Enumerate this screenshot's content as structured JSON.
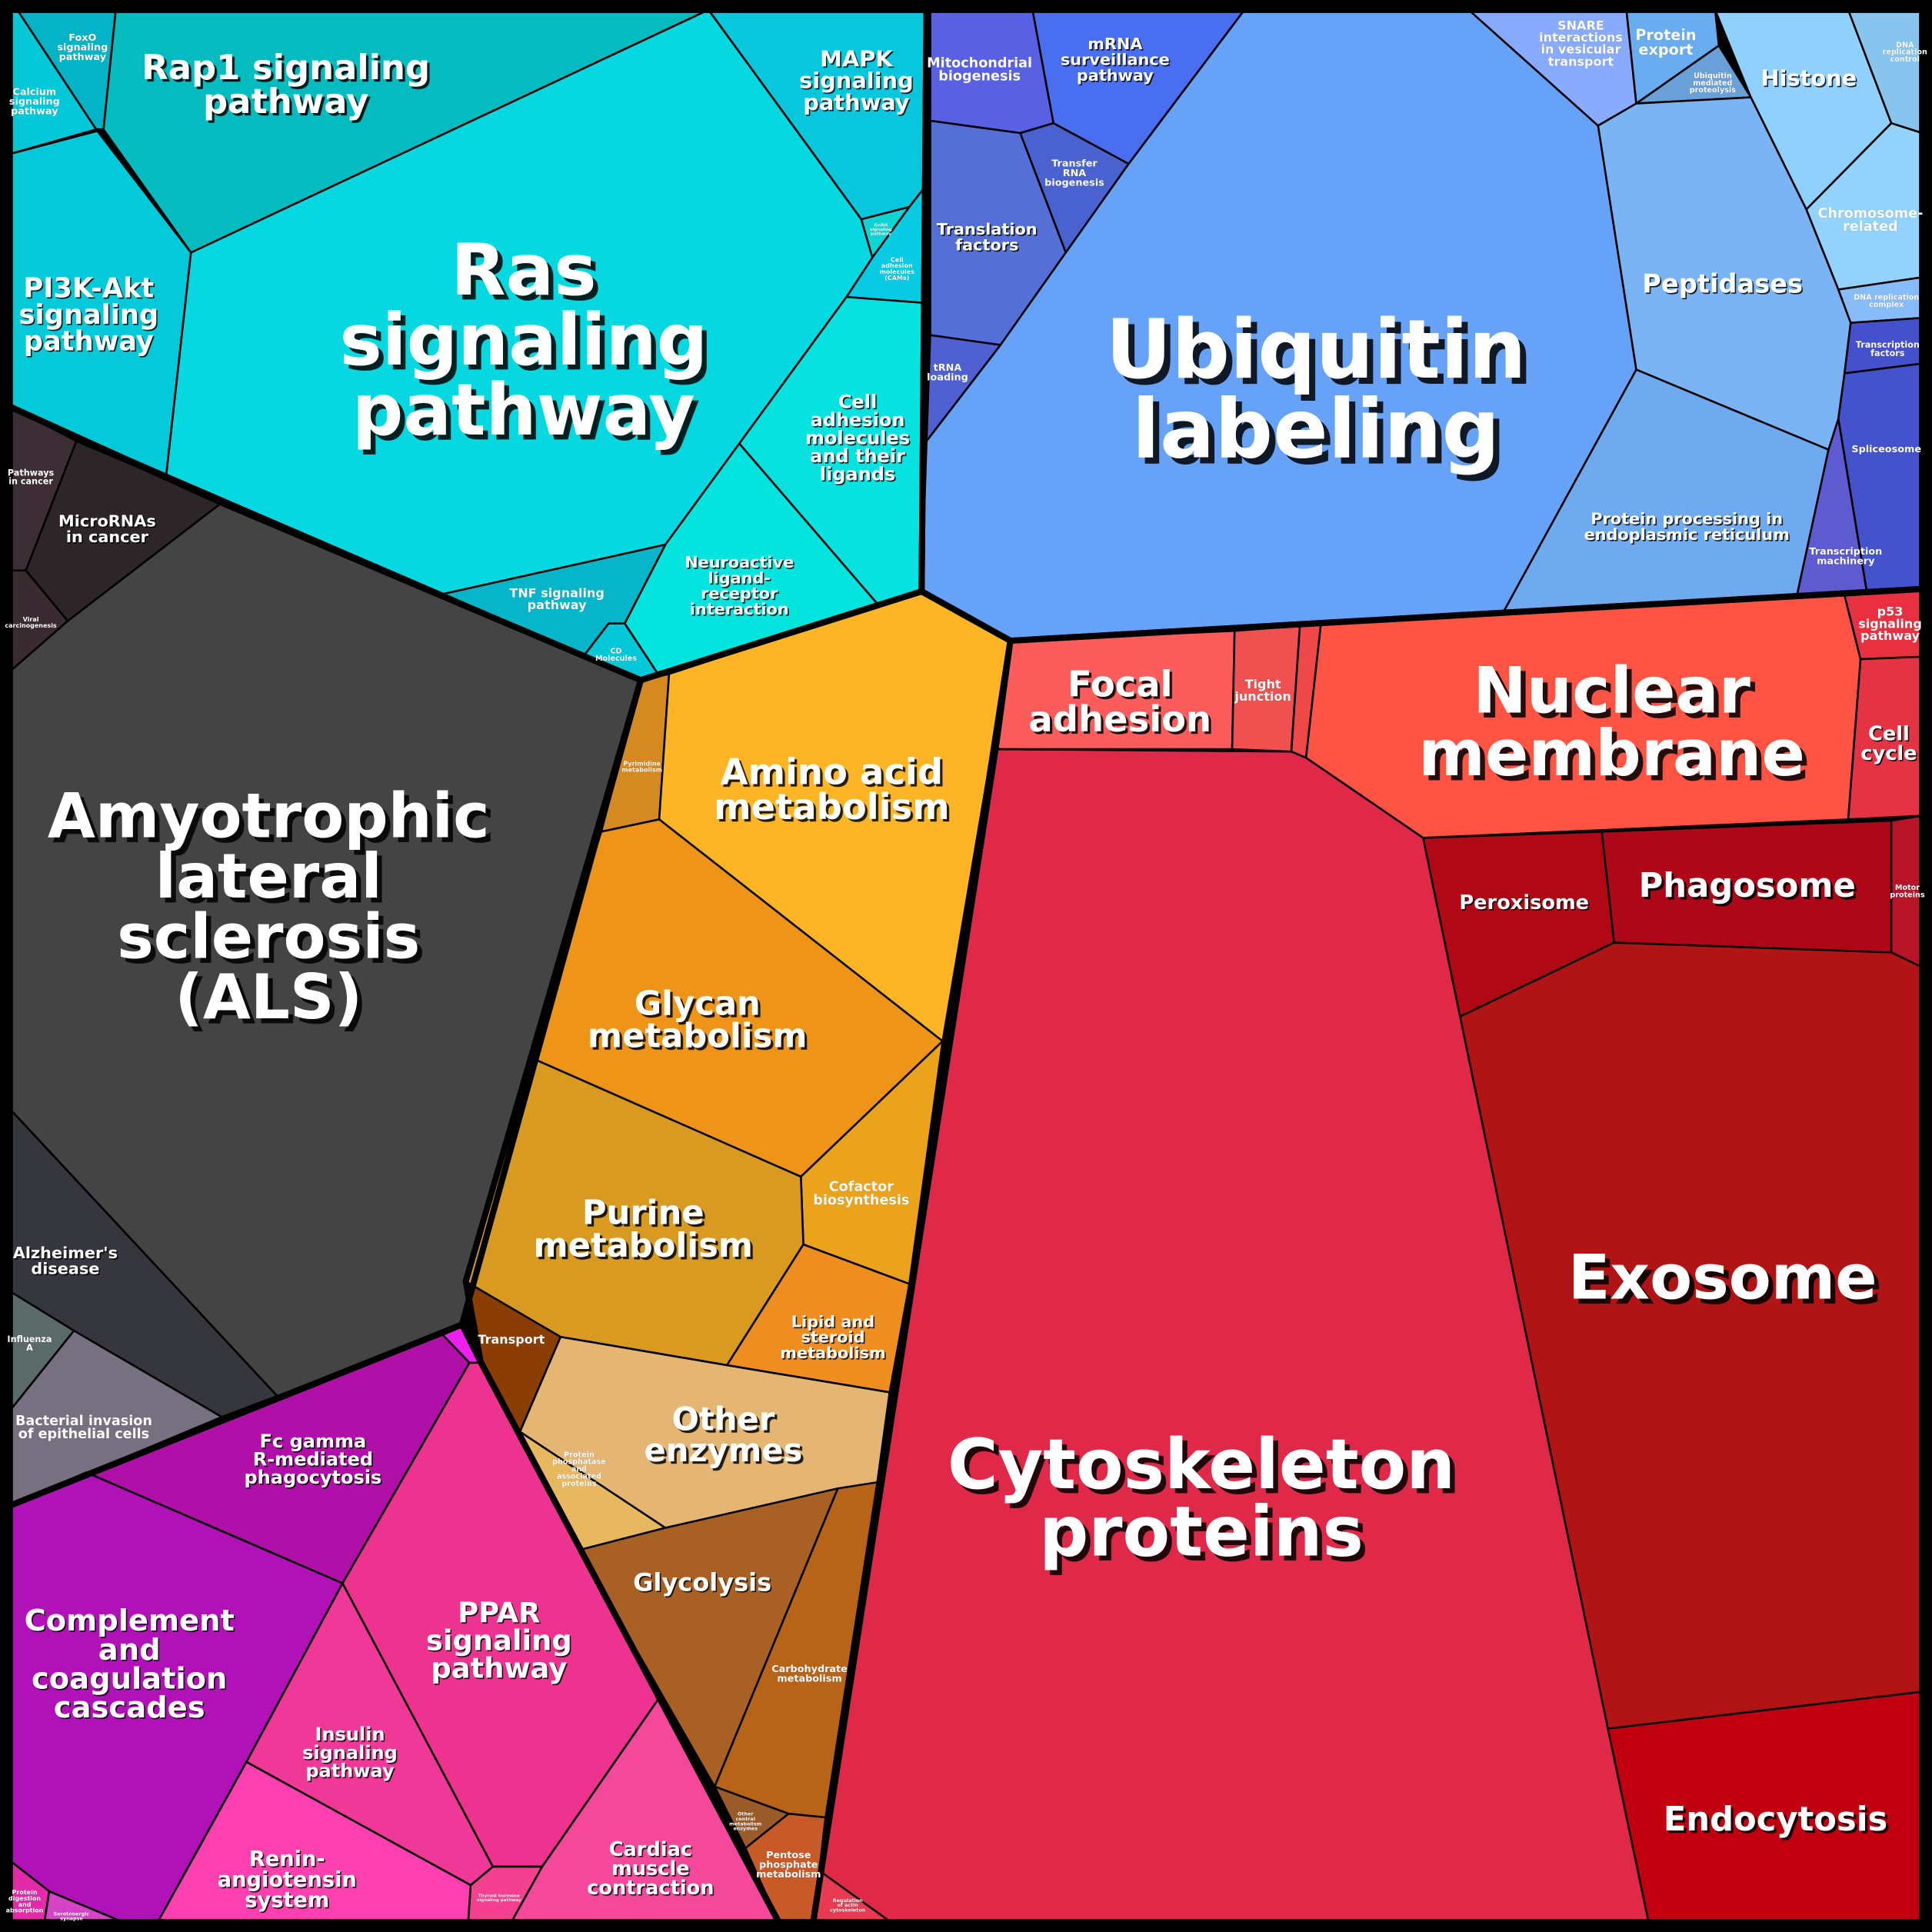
{
  "cells": {
    "foxo": {
      "label": [
        "FoxO",
        "signaling",
        "pathway"
      ],
      "color": "#04b3c6"
    },
    "calcium": {
      "label": [
        "Calcium",
        "signaling",
        "pathway"
      ],
      "color": "#04c8d8"
    },
    "rap1": {
      "label": [
        "Rap1 signaling",
        "pathway"
      ],
      "color": "#04bcc0"
    },
    "mapk": {
      "label": [
        "MAPK",
        "signaling",
        "pathway"
      ],
      "color": "#08c6dc"
    },
    "gnrh": {
      "label": [
        "GnRH",
        "signaling",
        "pathway"
      ],
      "color": "#0ed4d4"
    },
    "cams": {
      "label": [
        "Cell",
        "adhesion",
        "molecules",
        "(CAMs)"
      ],
      "color": "#06cbe2"
    },
    "pi3k": {
      "label": [
        "PI3K-Akt",
        "signaling",
        "pathway"
      ],
      "color": "#04c9d8"
    },
    "ras": {
      "label": [
        "Ras",
        "signaling",
        "pathway"
      ],
      "color": "#06d8e2"
    },
    "cam_ligands": {
      "label": [
        "Cell",
        "adhesion",
        "molecules",
        "and their",
        "ligands"
      ],
      "color": "#05e2e0"
    },
    "neuroactive": {
      "label": [
        "Neuroactive",
        "ligand-",
        "receptor",
        "interaction"
      ],
      "color": "#04e4de"
    },
    "tnf": {
      "label": [
        "TNF signaling",
        "pathway"
      ],
      "color": "#06b6c8"
    },
    "cd": {
      "label": [
        "CD",
        "Molecules"
      ],
      "color": "#04c8d8"
    },
    "pathways_cancer": {
      "label": [
        "Pathways",
        "in cancer"
      ],
      "color": "#3d2d35"
    },
    "micrornas": {
      "label": [
        "MicroRNAs",
        "in cancer"
      ],
      "color": "#2d2528"
    },
    "viral": {
      "label": [
        "Viral",
        "carcinogenesis"
      ],
      "color": "#3a2a32"
    },
    "als": {
      "label": [
        "Amyotrophic",
        "lateral",
        "sclerosis",
        "(ALS)"
      ],
      "color": "#444444"
    },
    "alzheimers": {
      "label": [
        "Alzheimer's",
        "disease"
      ],
      "color": "#36363e"
    },
    "influenza": {
      "label": [
        "Influenza",
        "A"
      ],
      "color": "#5a6a68"
    },
    "bacterial": {
      "label": [
        "Bacterial invasion",
        "of epithelial cells"
      ],
      "color": "#777080"
    },
    "pyrimidine": {
      "label": [
        "Pyrimidine",
        "metabolism"
      ],
      "color": "#d48a20"
    },
    "amino": {
      "label": [
        "Amino acid",
        "metabolism"
      ],
      "color": "#fdb526"
    },
    "glycan": {
      "label": [
        "Glycan",
        "metabolism"
      ],
      "color": "#ee9418"
    },
    "cofactor": {
      "label": [
        "Cofactor",
        "biosynthesis"
      ],
      "color": "#eaa31a"
    },
    "purine": {
      "label": [
        "Purine",
        "metabolism"
      ],
      "color": "#d99a22"
    },
    "lipid": {
      "label": [
        "Lipid and",
        "steroid",
        "metabolism"
      ],
      "color": "#ee8e20"
    },
    "transport": {
      "label": [
        "Transport"
      ],
      "color": "#8b3e04"
    },
    "other_enzymes": {
      "label": [
        "Other",
        "enzymes"
      ],
      "color": "#e4b573"
    },
    "phosphatase": {
      "label": [
        "Protein",
        "phosphatase",
        "and",
        "associated",
        "proteins"
      ],
      "color": "#e8b860"
    },
    "glycolysis": {
      "label": [
        "Glycolysis"
      ],
      "color": "#a86024"
    },
    "carbohydrate": {
      "label": [
        "Carbohydrate",
        "metabolism"
      ],
      "color": "#b86418"
    },
    "other_central": {
      "label": [
        "Other",
        "central",
        "metabolism",
        "enzymes"
      ],
      "color": "#9a5a2a"
    },
    "pentose": {
      "label": [
        "Pentose",
        "phosphate",
        "metabolism"
      ],
      "color": "#c85a28"
    },
    "magenta_small": {
      "label": [],
      "color": "#ee20ee"
    },
    "fcgamma": {
      "label": [
        "Fc gamma",
        "R-mediated",
        "phagocytosis"
      ],
      "color": "#b010a8"
    },
    "complement": {
      "label": [
        "Complement",
        "and",
        "coagulation",
        "cascades"
      ],
      "color": "#b012b8"
    },
    "ppar": {
      "label": [
        "PPAR",
        "signaling",
        "pathway"
      ],
      "color": "#ee3290"
    },
    "insulin": {
      "label": [
        "Insulin",
        "signaling",
        "pathway"
      ],
      "color": "#f03898"
    },
    "renin": {
      "label": [
        "Renin-",
        "angiotensin",
        "system"
      ],
      "color": "#fc40b0"
    },
    "thyroid": {
      "label": [
        "Thyroid hormone",
        "signaling pathway"
      ],
      "color": "#f44090"
    },
    "cardiac": {
      "label": [
        "Cardiac",
        "muscle",
        "contraction"
      ],
      "color": "#f4489a"
    },
    "protein_digestion": {
      "label": [
        "Protein",
        "digestion",
        "and",
        "absorption"
      ],
      "color": "#e42aa8"
    },
    "serotonergic": {
      "label": [
        "Serotonergic",
        "synapse"
      ],
      "color": "#d444c4"
    },
    "mito": {
      "label": [
        "Mitochondrial",
        "biogenesis"
      ],
      "color": "#5a60e2"
    },
    "mrna": {
      "label": [
        "mRNA",
        "surveillance",
        "pathway"
      ],
      "color": "#4a6ef0"
    },
    "transfer_rna": {
      "label": [
        "Transfer",
        "RNA",
        "biogenesis"
      ],
      "color": "#4a62d0"
    },
    "translation": {
      "label": [
        "Translation",
        "factors"
      ],
      "color": "#5470d6"
    },
    "trna": {
      "label": [
        "tRNA",
        "loading"
      ],
      "color": "#5060d0"
    },
    "ubiquitin": {
      "label": [
        "Ubiquitin",
        "labeling"
      ],
      "color": "#66a2f8"
    },
    "snare": {
      "label": [
        "SNARE",
        "interactions",
        "in vesicular",
        "transport"
      ],
      "color": "#88aaff"
    },
    "protein_export": {
      "label": [
        "Protein",
        "export"
      ],
      "color": "#6aacf0"
    },
    "ub_mediated": {
      "label": [
        "Ubiquitin",
        "mediated",
        "proteolysis"
      ],
      "color": "#6aa0d8"
    },
    "histone": {
      "label": [
        "Histone"
      ],
      "color": "#90d0fc"
    },
    "dna_rep_control": {
      "label": [
        "DNA",
        "replication",
        "control"
      ],
      "color": "#88c4ee"
    },
    "chromosome": {
      "label": [
        "Chromosome-",
        "related"
      ],
      "color": "#92d2fc"
    },
    "peptidases": {
      "label": [
        "Peptidases"
      ],
      "color": "#7ab4f4"
    },
    "dna_rep_complex": {
      "label": [
        "DNA replication",
        "complex"
      ],
      "color": "#88bcf8"
    },
    "tf": {
      "label": [
        "Transcription",
        "factors"
      ],
      "color": "#4450cc"
    },
    "spliceosome": {
      "label": [
        "Spliceosome"
      ],
      "color": "#4452cc"
    },
    "er": {
      "label": [
        "Protein processing in",
        "endoplasmic reticulum"
      ],
      "color": "#70aaee"
    },
    "transc_machinery": {
      "label": [
        "Transcription",
        "machinery"
      ],
      "color": "#5e5ad0"
    },
    "focal": {
      "label": [
        "Focal",
        "adhesion"
      ],
      "color": "#fc5c5c"
    },
    "tight": {
      "label": [
        "Tight",
        "junction"
      ],
      "color": "#f05050"
    },
    "red_small": {
      "label": [],
      "color": "#ee4848"
    },
    "nuclear": {
      "label": [
        "Nuclear",
        "membrane"
      ],
      "color": "#ff5444"
    },
    "p53": {
      "label": [
        "p53",
        "signaling",
        "pathway"
      ],
      "color": "#e83040"
    },
    "cell_cycle": {
      "label": [
        "Cell",
        "cycle"
      ],
      "color": "#e43444"
    },
    "cytoskeleton": {
      "label": [
        "Cytoskeleton",
        "proteins"
      ],
      "color": "#e02848"
    },
    "peroxisome": {
      "label": [
        "Peroxisome"
      ],
      "color": "#b00814"
    },
    "phagosome": {
      "label": [
        "Phagosome"
      ],
      "color": "#ae0818"
    },
    "motor": {
      "label": [
        "Motor",
        "proteins"
      ],
      "color": "#b81428"
    },
    "exosome": {
      "label": [
        "Exosome"
      ],
      "color": "#b01414"
    },
    "endocytosis": {
      "label": [
        "Endocytosis"
      ],
      "color": "#c00010"
    },
    "regulation_actin": {
      "label": [
        "Regulation",
        "of actin",
        "cytoskeleton"
      ],
      "color": "#e83a50"
    }
  }
}
